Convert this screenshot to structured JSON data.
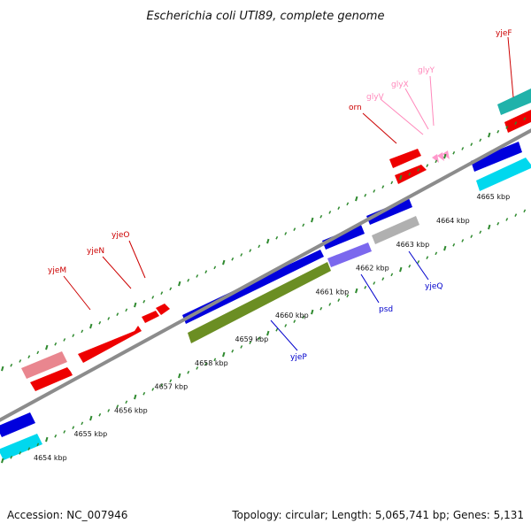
{
  "title": "Escherichia coli UTI89, complete genome",
  "footer": {
    "accession": "Accession: NC_007946",
    "summary": "Topology: circular; Length: 5,065,741 bp; Genes: 5,131"
  },
  "colors": {
    "backbone": "#8c8c8c",
    "tick": "#2f8a2f",
    "label_red": "#cc0000",
    "label_blue": "#0000cc",
    "label_pink": "#ff88bb"
  },
  "scale": {
    "unit": "kbp",
    "labels": [
      "4654 kbp",
      "4655 kbp",
      "4656 kbp",
      "4657 kbp",
      "4658 kbp",
      "4659 kbp",
      "4660 kbp",
      "4661 kbp",
      "4662 kbp",
      "4663 kbp",
      "4664 kbp",
      "4665 kbp"
    ]
  },
  "gene_labels": [
    {
      "name": "yjeM",
      "color": "#cc0000"
    },
    {
      "name": "yjeN",
      "color": "#cc0000"
    },
    {
      "name": "yjeO",
      "color": "#cc0000"
    },
    {
      "name": "orn",
      "color": "#cc0000"
    },
    {
      "name": "glyV",
      "color": "#ff88bb"
    },
    {
      "name": "glyX",
      "color": "#ff88bb"
    },
    {
      "name": "glyY",
      "color": "#ff88bb"
    },
    {
      "name": "yjeF",
      "color": "#cc0000"
    },
    {
      "name": "yjeP",
      "color": "#0000cc"
    },
    {
      "name": "psd",
      "color": "#0000cc"
    },
    {
      "name": "yjeQ",
      "color": "#0000cc"
    }
  ]
}
